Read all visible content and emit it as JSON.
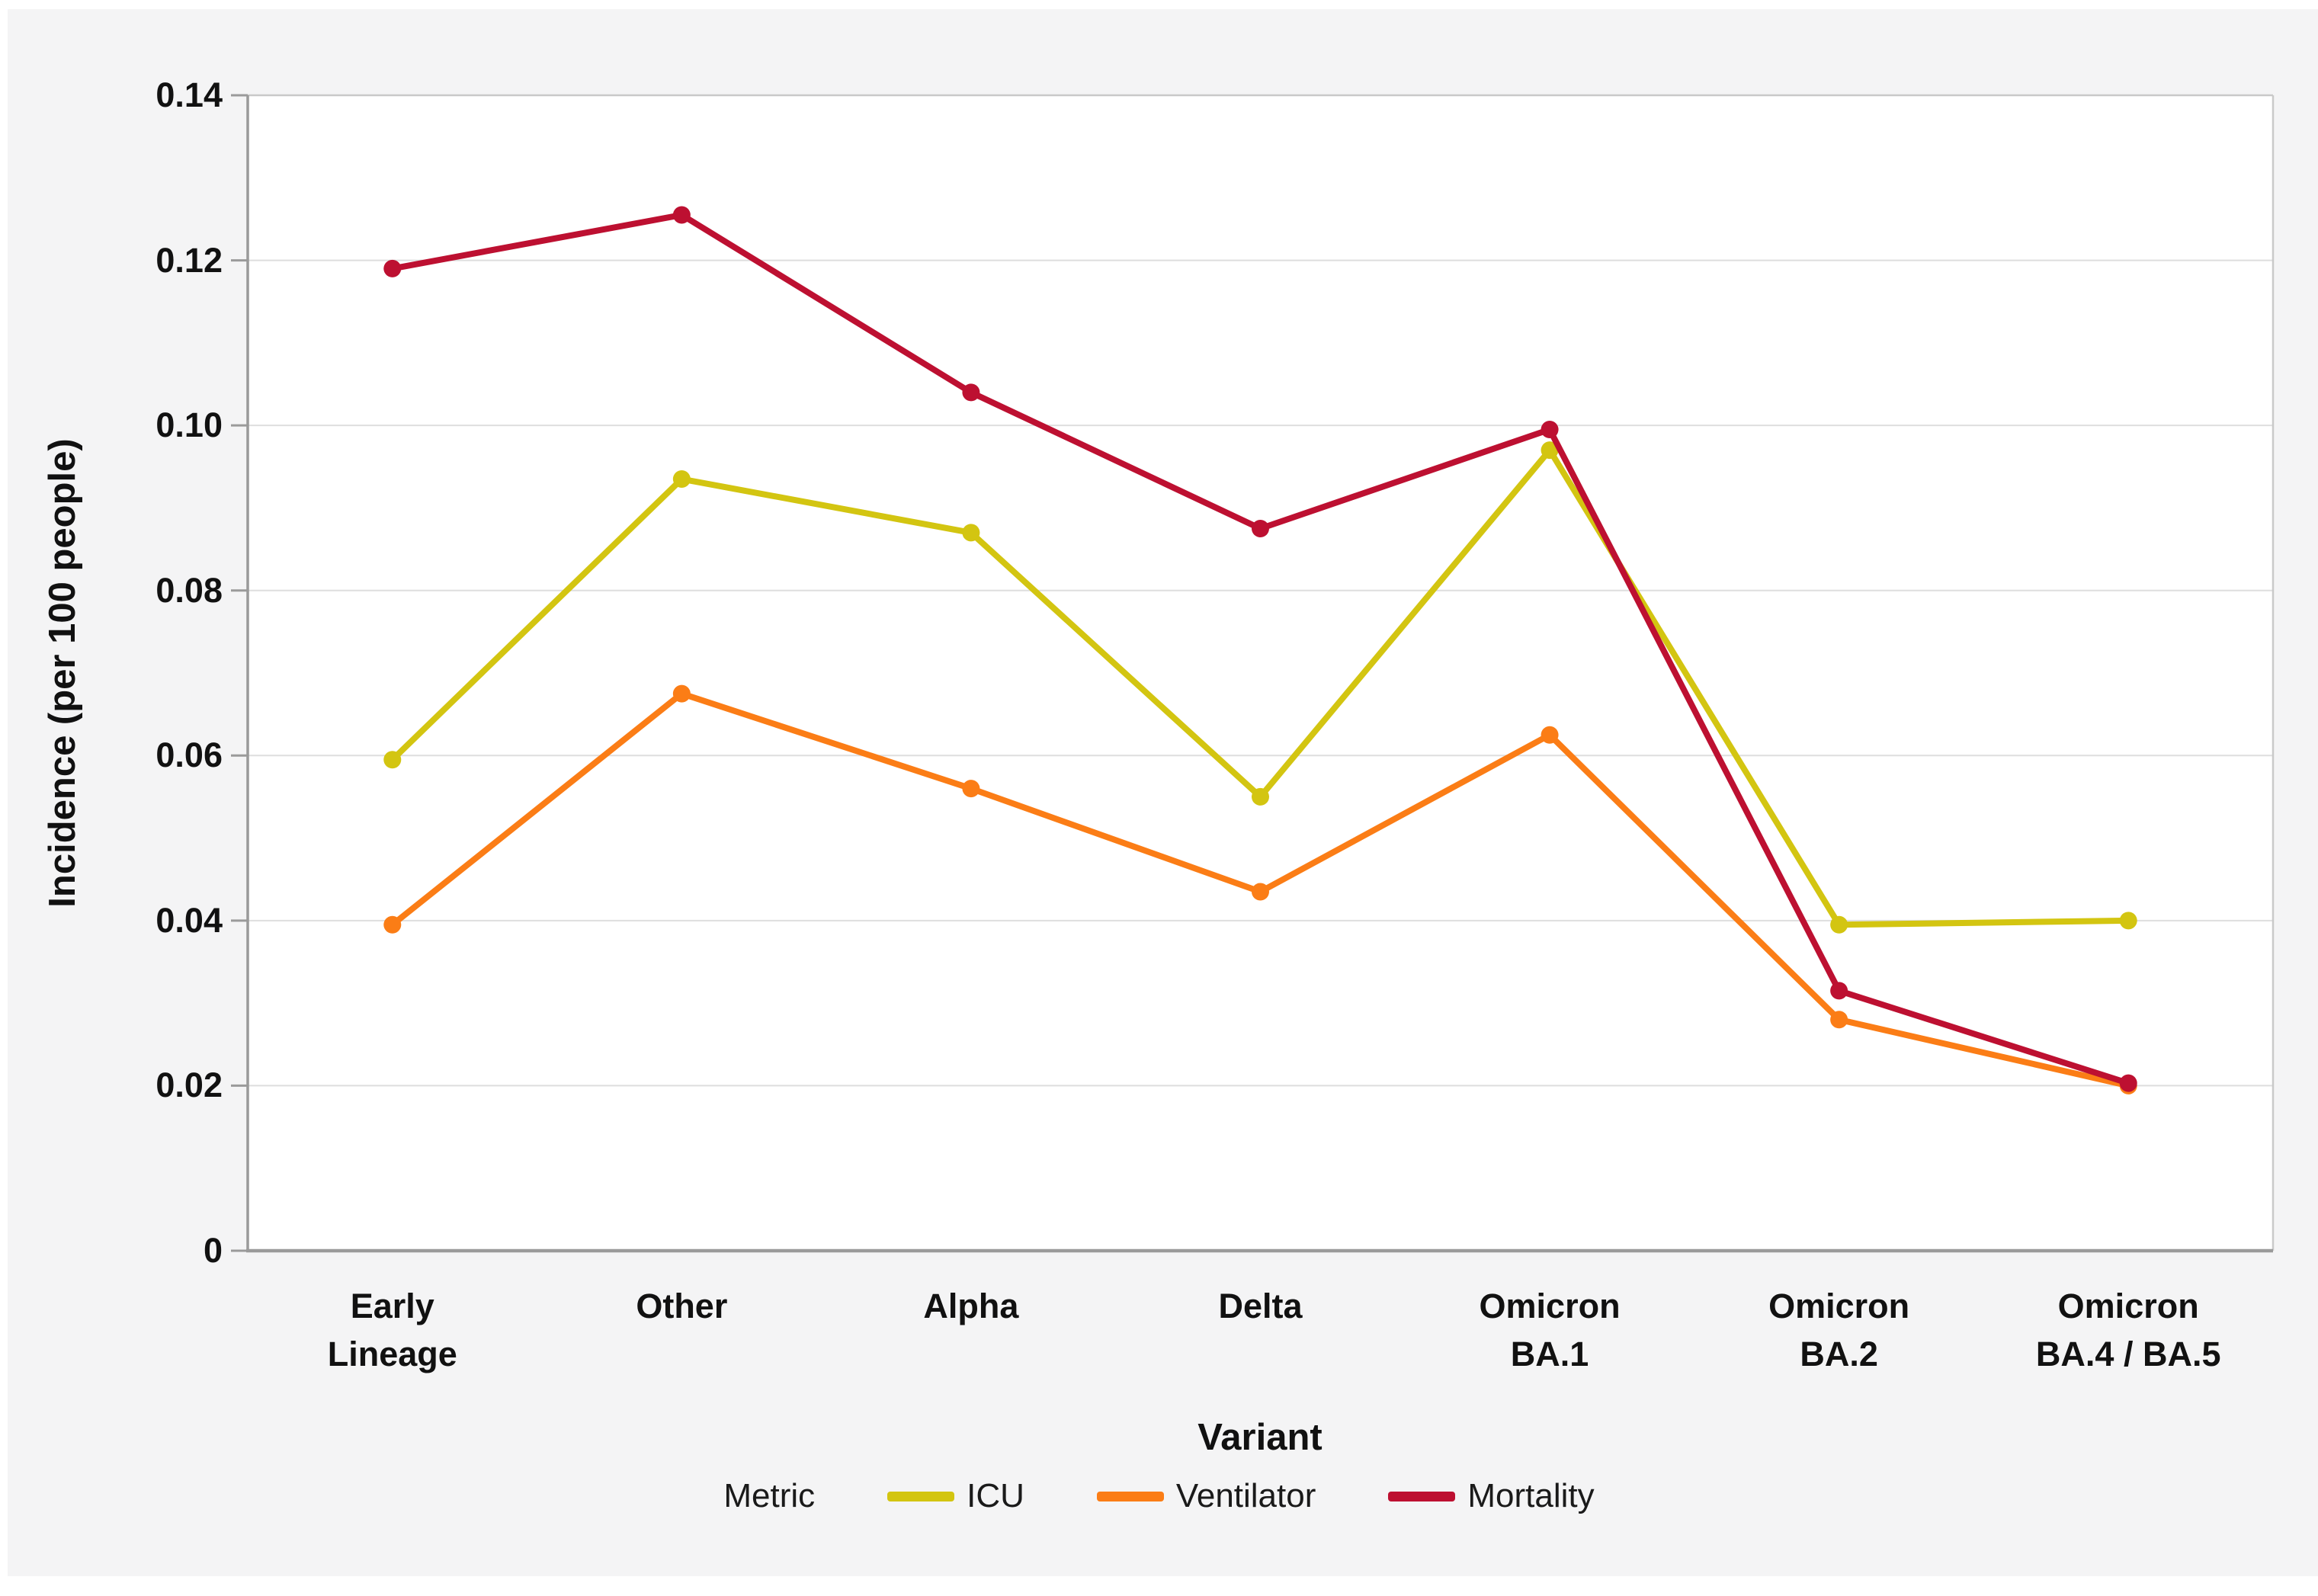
{
  "figure": {
    "y_axis": {
      "title": "Incidence (per 100 people)",
      "tick_labels": [
        "0",
        "0.02",
        "0.04",
        "0.06",
        "0.08",
        "0.10",
        "0.12",
        "0.14"
      ],
      "tick_values": [
        0,
        0.02,
        0.04,
        0.06,
        0.08,
        0.1,
        0.12,
        0.14
      ]
    },
    "x_axis": {
      "title": "Variant",
      "category_lines": [
        "Early\nLineage",
        "Other",
        "Alpha",
        "Delta",
        "Omicron\nBA.1",
        "Omicron\nBA.2",
        "Omicron\nBA.4 / BA.5"
      ]
    },
    "legend": {
      "title": "Metric"
    },
    "colors": {
      "plot_background": "#ffffff",
      "figure_background": "#f4f4f5",
      "gridline": "#dedede",
      "frame": "#c9c9c9",
      "axis": "#9a9a9a"
    }
  },
  "chart_data": {
    "type": "line",
    "title": "",
    "xlabel": "Variant",
    "ylabel": "Incidence (per 100 people)",
    "categories": [
      "Early Lineage",
      "Other",
      "Alpha",
      "Delta",
      "Omicron BA.1",
      "Omicron BA.2",
      "Omicron BA.4 / BA.5"
    ],
    "series": [
      {
        "name": "ICU",
        "color": "#d3c511",
        "values": [
          0.0595,
          0.0935,
          0.087,
          0.055,
          0.097,
          0.0395,
          0.04
        ]
      },
      {
        "name": "Ventilator",
        "color": "#fb7d16",
        "values": [
          0.0395,
          0.0675,
          0.056,
          0.0435,
          0.0625,
          0.028,
          0.02
        ]
      },
      {
        "name": "Mortality",
        "color": "#bd1031",
        "values": [
          0.119,
          0.1255,
          0.104,
          0.0875,
          0.0995,
          0.0315,
          0.0203
        ]
      }
    ],
    "ylim": [
      0,
      0.14
    ],
    "grid": true,
    "legend_position": "bottom",
    "marker": "circle"
  }
}
